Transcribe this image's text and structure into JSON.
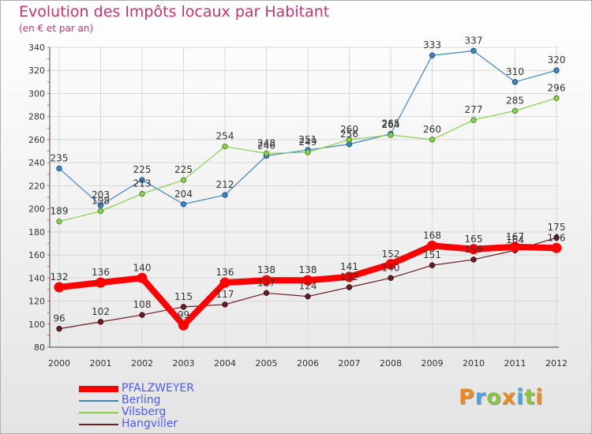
{
  "header": {
    "title": "Evolution des Impôts locaux par Habitant",
    "subtitle": "(en € et par an)"
  },
  "brand": {
    "logo": "Proxiti"
  },
  "chart_data": {
    "type": "line",
    "title": "Evolution des Impôts locaux par Habitant",
    "subtitle": "(en € et par an)",
    "xlabel": "",
    "ylabel": "",
    "x": [
      "2000",
      "2001",
      "2002",
      "2003",
      "2004",
      "2005",
      "2006",
      "2007",
      "2008",
      "2009",
      "2010",
      "2011",
      "2012"
    ],
    "ylim": [
      80,
      340
    ],
    "yticks": [
      80,
      100,
      120,
      140,
      160,
      180,
      200,
      220,
      240,
      260,
      280,
      300,
      320,
      340
    ],
    "grid": true,
    "legend_position": "bottom-left",
    "series": [
      {
        "name": "PFALZWEYER",
        "color": "#ff0000",
        "values": [
          132,
          136,
          140,
          99,
          136,
          138,
          138,
          141,
          152,
          168,
          165,
          167,
          166
        ]
      },
      {
        "name": "Berling",
        "color": "#3e87c4",
        "values": [
          235,
          203,
          225,
          204,
          212,
          246,
          251,
          256,
          265,
          333,
          337,
          310,
          320
        ]
      },
      {
        "name": "Vilsberg",
        "color": "#86d04e",
        "values": [
          189,
          198,
          213,
          225,
          254,
          248,
          249,
          260,
          264,
          260,
          277,
          285,
          296
        ]
      },
      {
        "name": "Hangviller",
        "color": "#6b1d24",
        "values": [
          96,
          102,
          108,
          115,
          117,
          127,
          124,
          132,
          140,
          151,
          156,
          164,
          175
        ]
      }
    ]
  }
}
